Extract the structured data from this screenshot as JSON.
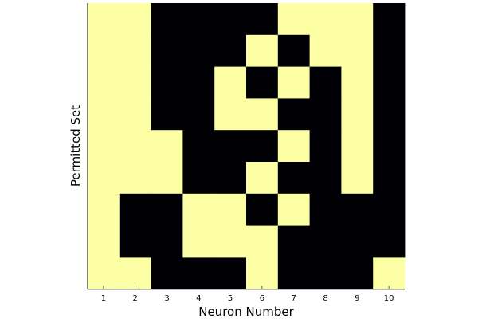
{
  "chart_data": {
    "type": "heatmap",
    "title": "",
    "xlabel": "Neuron Number",
    "ylabel": "Permitted Set",
    "x_ticks": [
      "1",
      "2",
      "3",
      "4",
      "5",
      "6",
      "7",
      "8",
      "9",
      "10"
    ],
    "y_ticks_shown": false,
    "colormap": {
      "0": "#000004",
      "1": "#fcffa4"
    },
    "matrix": [
      [
        1,
        1,
        0,
        0,
        0,
        0,
        1,
        1,
        1,
        0
      ],
      [
        1,
        1,
        0,
        0,
        0,
        1,
        0,
        1,
        1,
        0
      ],
      [
        1,
        1,
        0,
        0,
        1,
        0,
        1,
        0,
        1,
        0
      ],
      [
        1,
        1,
        0,
        0,
        1,
        1,
        0,
        0,
        1,
        0
      ],
      [
        1,
        1,
        1,
        0,
        0,
        0,
        1,
        0,
        1,
        0
      ],
      [
        1,
        1,
        1,
        0,
        0,
        1,
        0,
        0,
        1,
        0
      ],
      [
        1,
        0,
        0,
        1,
        1,
        0,
        1,
        0,
        0,
        0
      ],
      [
        1,
        0,
        0,
        1,
        1,
        1,
        0,
        0,
        0,
        0
      ],
      [
        1,
        1,
        0,
        0,
        0,
        1,
        0,
        0,
        0,
        1
      ]
    ],
    "grid": false,
    "legend": "none"
  }
}
